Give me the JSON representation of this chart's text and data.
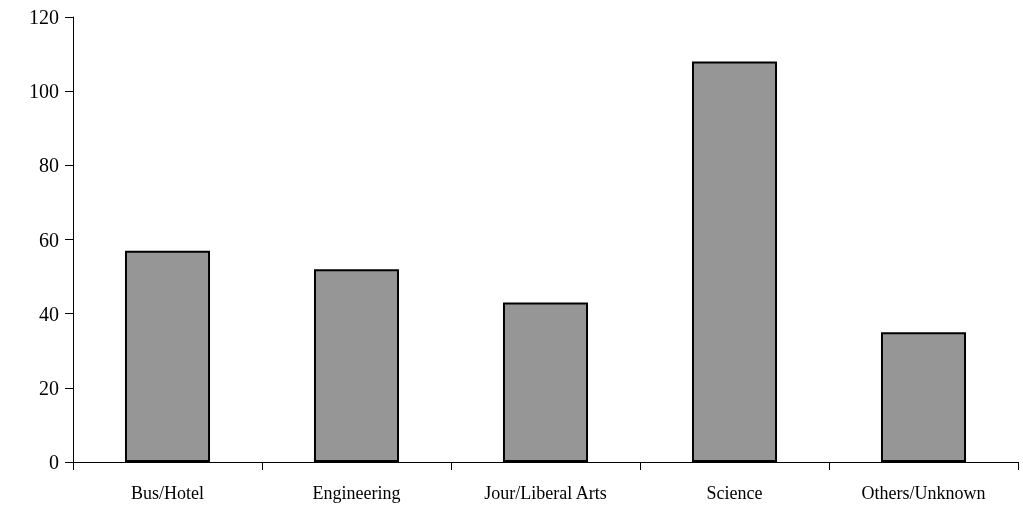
{
  "chart_data": {
    "type": "bar",
    "categories": [
      "Bus/Hotel",
      "Engineering",
      "Jour/Liberal Arts",
      "Science",
      "Others/Unknown"
    ],
    "values": [
      57,
      52,
      43,
      108,
      35
    ],
    "color": "#969696",
    "ylim": [
      0,
      120
    ],
    "yticks": [
      0,
      20,
      40,
      60,
      80,
      100,
      120
    ],
    "grid": false
  }
}
